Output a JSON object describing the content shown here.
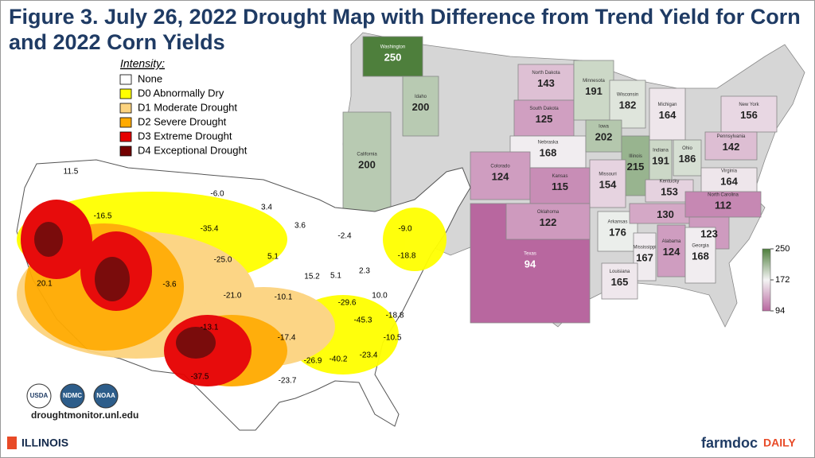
{
  "title": "Figure 3. July 26, 2022 Drought Map with Difference from Trend Yield for Corn and 2022 Corn Yields",
  "legend": {
    "title": "Intensity:",
    "items": [
      {
        "label": "None",
        "color": "#ffffff"
      },
      {
        "label": "D0 Abnormally Dry",
        "color": "#ffff00"
      },
      {
        "label": "D1 Moderate Drought",
        "color": "#fcd37f"
      },
      {
        "label": "D2 Severe Drought",
        "color": "#ffaa00"
      },
      {
        "label": "D3 Extreme Drought",
        "color": "#e60000"
      },
      {
        "label": "D4 Exceptional Drought",
        "color": "#730000"
      }
    ]
  },
  "drought_labels": [
    11.5,
    -16.5,
    {
      "value": -6,
      "label": "-6.0"
    },
    3.4,
    -35.4,
    3.6,
    -2.4,
    {
      "value": -9,
      "label": "-9.0"
    },
    {
      "value": -25,
      "label": "-25.0"
    },
    5.1,
    -18.8,
    20.1,
    -3.6,
    15.2,
    5.1,
    2.3,
    {
      "value": -21,
      "label": "-21.0"
    },
    -10.1,
    -29.6,
    {
      "value": 10,
      "label": "10.0"
    },
    -13.1,
    -45.3,
    -18.8,
    -17.4,
    -10.5,
    -40.2,
    -23.4,
    -26.9,
    -37.5,
    -23.7
  ],
  "states": [
    {
      "name": "Texas",
      "yield": 94
    },
    {
      "name": "Washington",
      "yield": 250
    },
    {
      "name": "Idaho",
      "yield": 200
    },
    {
      "name": "California",
      "yield": 200
    },
    {
      "name": "North Dakota",
      "yield": 143
    },
    {
      "name": "South Dakota",
      "yield": 125
    },
    {
      "name": "Minnesota",
      "yield": 191
    },
    {
      "name": "Wisconsin",
      "yield": 182
    },
    {
      "name": "Michigan",
      "yield": 164
    },
    {
      "name": "New York",
      "yield": 156
    },
    {
      "name": "Nebraska",
      "yield": 168
    },
    {
      "name": "Iowa",
      "yield": 202
    },
    {
      "name": "Illinois",
      "yield": 215
    },
    {
      "name": "Indiana",
      "yield": 191
    },
    {
      "name": "Ohio",
      "yield": 186
    },
    {
      "name": "Pennsylvania",
      "yield": 142
    },
    {
      "name": "Colorado",
      "yield": 124
    },
    {
      "name": "Kansas",
      "yield": 115
    },
    {
      "name": "Missouri",
      "yield": 154
    },
    {
      "name": "Kentucky",
      "yield": 153
    },
    {
      "name": "Virginia",
      "yield": 164
    },
    {
      "name": "Oklahoma",
      "yield": 122
    },
    {
      "name": "Arkansas",
      "yield": 176
    },
    {
      "name": null,
      "yield": 130
    },
    {
      "name": "North Carolina",
      "yield": 112
    },
    {
      "name": null,
      "yield": 123
    },
    {
      "name": "Mississippi",
      "yield": 167
    },
    {
      "name": "Alabama",
      "yield": 124
    },
    {
      "name": "Georgia",
      "yield": 168
    },
    {
      "name": "Louisiana",
      "yield": 165
    }
  ],
  "scale": {
    "ticks": [
      250,
      172,
      94
    ],
    "colors": [
      "#4e7f3c",
      "#f4f4f4",
      "#b8679f"
    ]
  },
  "logos": [
    "USDA",
    "NDMC",
    "NOAA"
  ],
  "source": "droughtmonitor.unl.edu",
  "footer": {
    "left": "ILLINOIS",
    "right_main": "farmdoc",
    "right_sub": "DAILY"
  }
}
